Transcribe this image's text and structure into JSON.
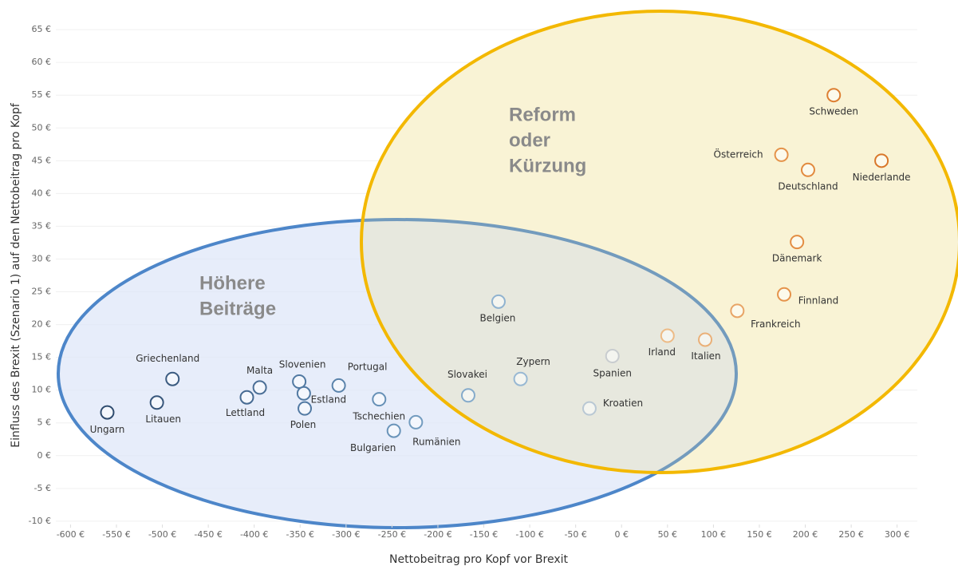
{
  "chart_data": {
    "type": "scatter",
    "x_label": "Nettobeitrag pro Kopf vor Brexit",
    "y_label": "Einfluss des Brexit (Szenario 1) auf den Nettobeitrag pro Kopf",
    "annotations": [
      {
        "lines": [
          "Höhere",
          "Beiträge"
        ]
      },
      {
        "lines": [
          "Reform",
          "oder",
          "Kürzung"
        ]
      }
    ],
    "labels": [
      "Ungarn",
      "Litauen",
      "Griechenland",
      "Lettland",
      "Malta",
      "Slovenien",
      "Estland",
      "Polen",
      "Portugal",
      "Tschechien",
      "Bulgarien",
      "Rumänien",
      "Slovakei",
      "Belgien",
      "Zypern",
      "Kroatien",
      "Spanien",
      "Irland",
      "Italien",
      "Frankreich",
      "Finnland",
      "Dänemark",
      "Deutschland",
      "Österreich",
      "Niederlande",
      "Schweden"
    ],
    "x": [
      -560,
      -506,
      -489,
      -408,
      -394,
      -351,
      -346,
      -345,
      -308,
      -264,
      -248,
      -224,
      -167,
      -134,
      -110,
      -35,
      -10,
      50,
      91,
      126,
      177,
      191,
      203,
      174,
      283,
      231
    ],
    "y": [
      6.6,
      8.1,
      11.7,
      8.9,
      10.4,
      11.3,
      9.5,
      7.2,
      10.7,
      8.6,
      3.8,
      5.1,
      9.2,
      23.5,
      11.7,
      7.2,
      15.2,
      18.3,
      17.7,
      22.1,
      24.6,
      32.6,
      43.6,
      45.9,
      45.0,
      55.0
    ],
    "colors": [
      "#2e4b6e",
      "#36557a",
      "#3b5b80",
      "#466a92",
      "#4a6e96",
      "#5179a2",
      "#527aa3",
      "#527aa3",
      "#5a83ab",
      "#6690b6",
      "#6a94b9",
      "#739cbf",
      "#85abcb",
      "#90b3d0",
      "#98b8d3",
      "#b9c8d4",
      "#c8cccf",
      "#edbb86",
      "#eab078",
      "#e8a466",
      "#e5934b",
      "#e38d43",
      "#e28a3e",
      "#e5934a",
      "#d9772a",
      "#dd7f32"
    ],
    "xlim": [
      -616,
      322
    ],
    "ylim": [
      -10.5,
      65.5
    ],
    "xticks": [
      {
        "value": -600,
        "label": "-600 €"
      },
      {
        "value": -550,
        "label": "-550 €"
      },
      {
        "value": -500,
        "label": "-500 €"
      },
      {
        "value": -450,
        "label": "-450 €"
      },
      {
        "value": -400,
        "label": "-400 €"
      },
      {
        "value": -350,
        "label": "-350 €"
      },
      {
        "value": -300,
        "label": "-300 €"
      },
      {
        "value": -250,
        "label": "-250 €"
      },
      {
        "value": -200,
        "label": "-200 €"
      },
      {
        "value": -150,
        "label": "-150 €"
      },
      {
        "value": -100,
        "label": "-100 €"
      },
      {
        "value": -50,
        "label": "-50 €"
      },
      {
        "value": 0,
        "label": "0 €"
      },
      {
        "value": 50,
        "label": "50 €"
      },
      {
        "value": 100,
        "label": "100 €"
      },
      {
        "value": 150,
        "label": "150 €"
      },
      {
        "value": 200,
        "label": "200 €"
      },
      {
        "value": 250,
        "label": "250 €"
      },
      {
        "value": 300,
        "label": "300 €"
      }
    ],
    "yticks": [
      {
        "value": -10,
        "label": "-10 €"
      },
      {
        "value": -5,
        "label": "-5 €"
      },
      {
        "value": 0,
        "label": "0 €"
      },
      {
        "value": 5,
        "label": "5 €"
      },
      {
        "value": 10,
        "label": "10 €"
      },
      {
        "value": 15,
        "label": "15 €"
      },
      {
        "value": 20,
        "label": "20 €"
      },
      {
        "value": 25,
        "label": "25 €"
      },
      {
        "value": 30,
        "label": "30 €"
      },
      {
        "value": 35,
        "label": "35 €"
      },
      {
        "value": 40,
        "label": "40 €"
      },
      {
        "value": 45,
        "label": "45 €"
      },
      {
        "value": 50,
        "label": "50 €"
      },
      {
        "value": 55,
        "label": "55 €"
      },
      {
        "value": 60,
        "label": "60 €"
      },
      {
        "value": 65,
        "label": "65 €"
      }
    ],
    "grid": true
  }
}
